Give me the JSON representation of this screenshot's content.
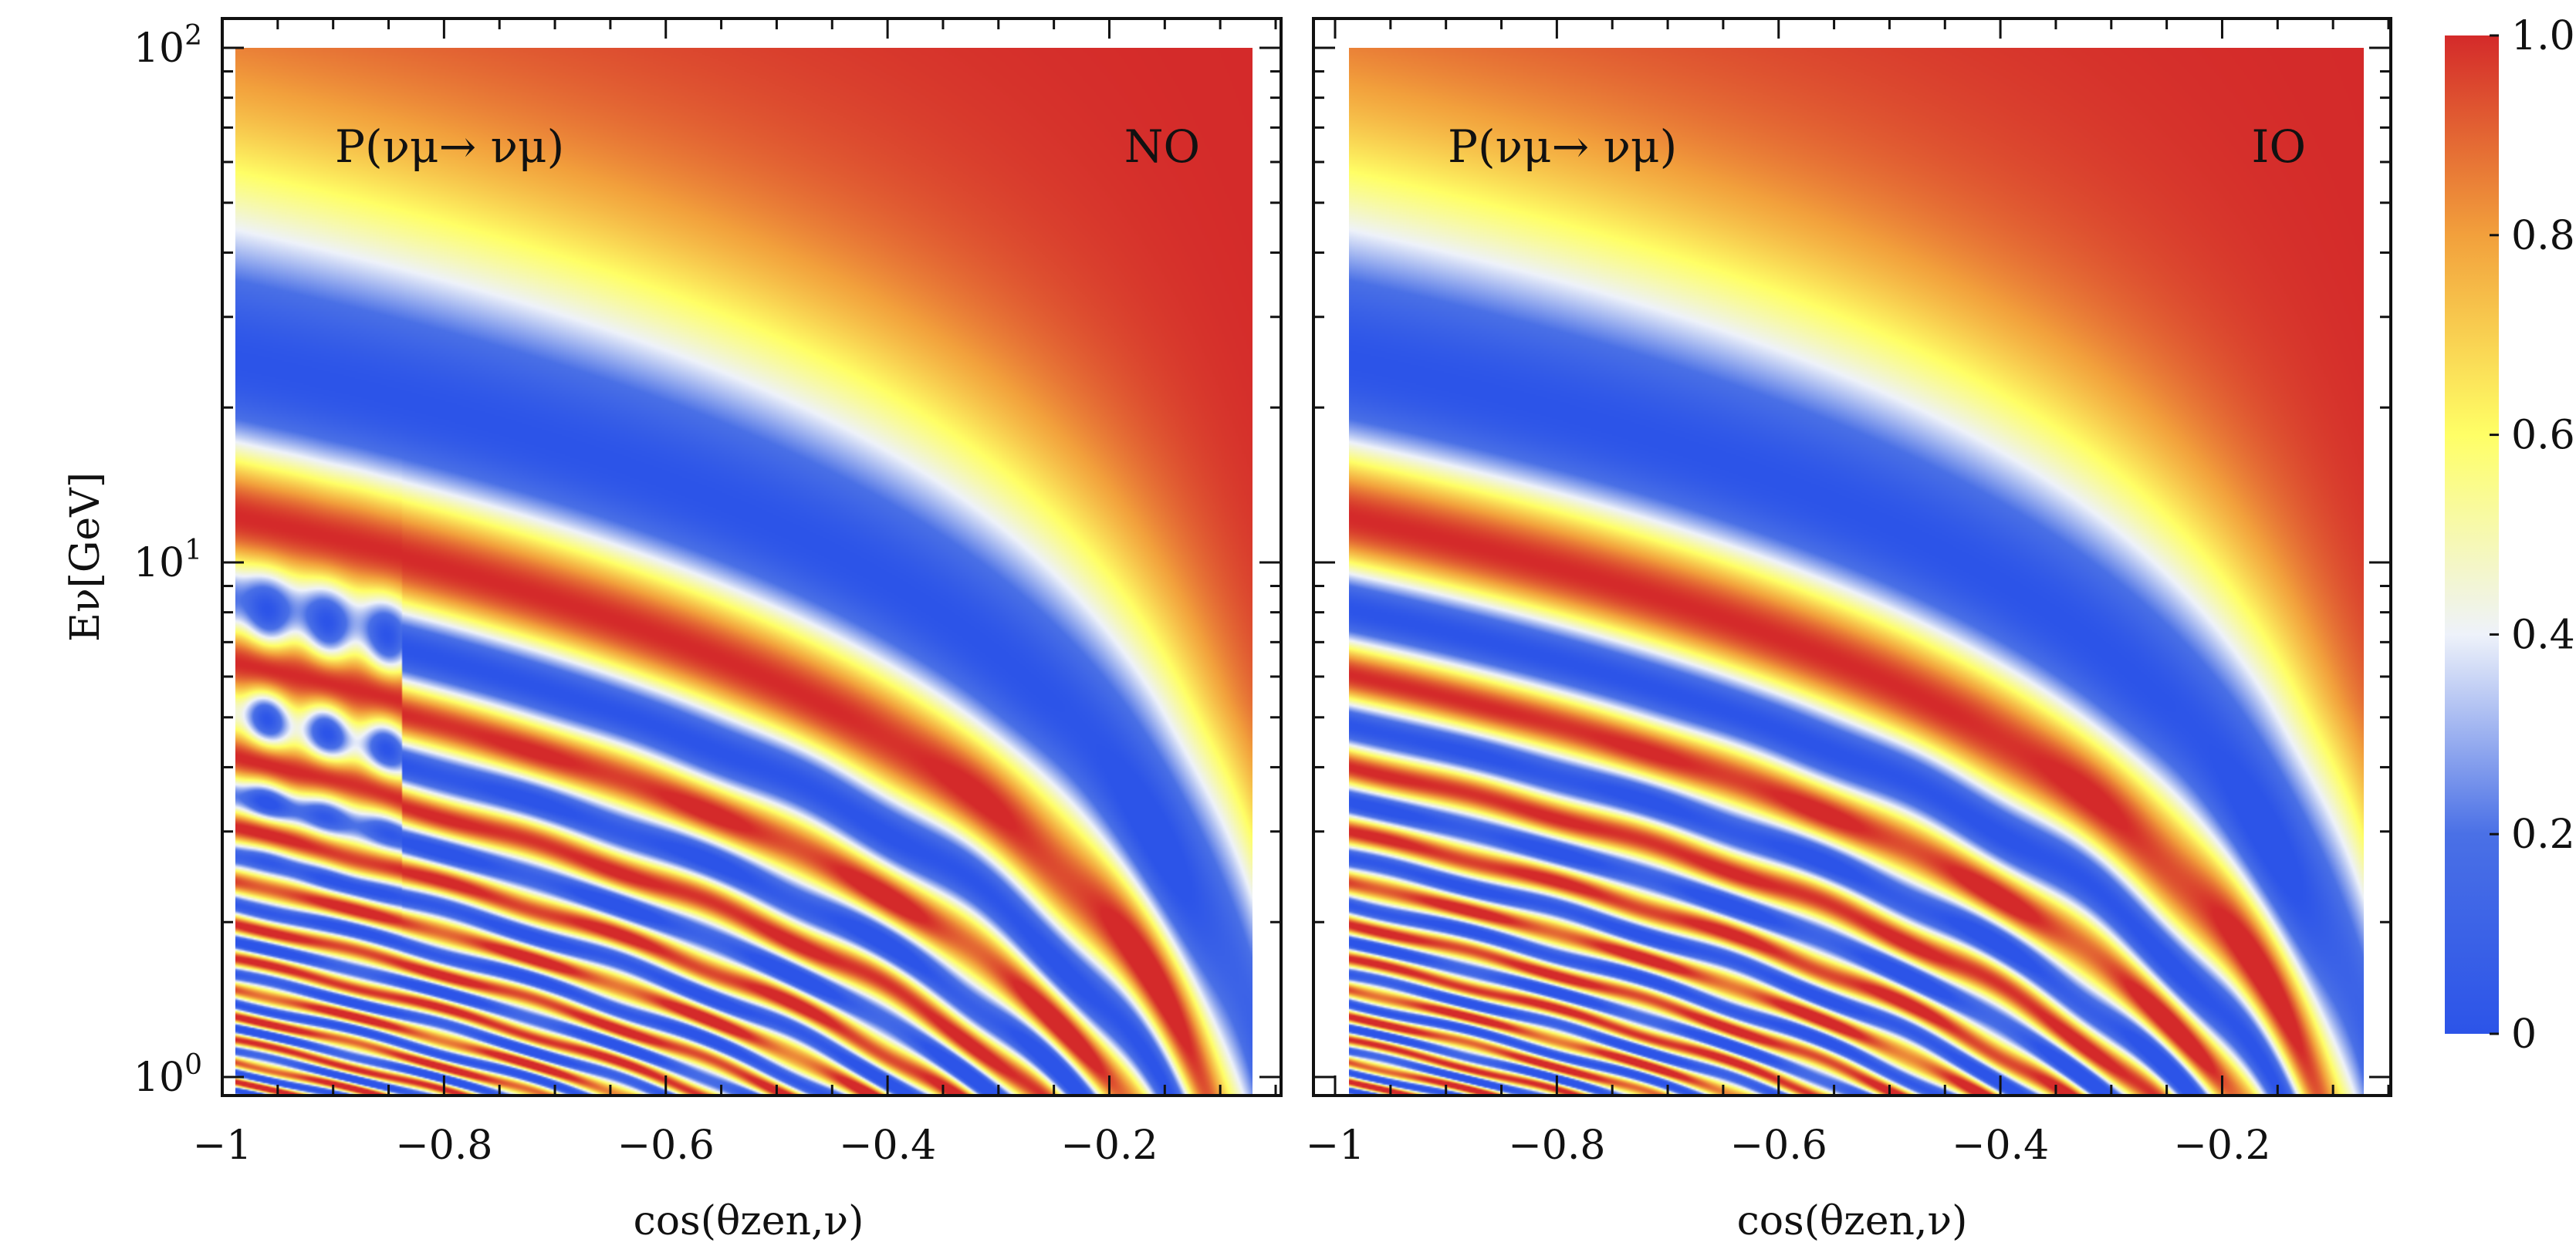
{
  "chart_data": [
    {
      "type": "heatmap",
      "panel": "left",
      "quantity": "P(νμ→ νμ)",
      "ordering_label": "NO",
      "ordering": "normal ordering",
      "xlabel": "cos(θzen,ν)",
      "ylabel": "Eν[GeV]",
      "xlim": [
        -1.0,
        -0.05
      ],
      "ylim": [
        1,
        100
      ],
      "yscale": "log",
      "x_ticks": [
        "−1",
        "−0.8",
        "−0.6",
        "−0.4",
        "−0.2"
      ],
      "y_ticks": [
        {
          "base": "10",
          "exp": "0"
        },
        {
          "base": "10",
          "exp": "1"
        },
        {
          "base": "10",
          "exp": "2"
        }
      ],
      "features": "first oscillation minimum (blue band) near E≈25 GeV at cosθ=−1; strong survival (red) at high E and near-horizontal directions; fast oscillations below 10 GeV"
    },
    {
      "type": "heatmap",
      "panel": "right",
      "quantity": "P(νμ→ νμ)",
      "ordering_label": "IO",
      "ordering": "inverted ordering",
      "xlabel": "cos(θzen,ν)",
      "ylabel": "",
      "xlim": [
        -1.0,
        -0.05
      ],
      "ylim": [
        1,
        100
      ],
      "yscale": "log",
      "x_ticks": [
        "−1",
        "−0.8",
        "−0.6",
        "−0.4",
        "−0.2"
      ],
      "y_ticks": [],
      "features": "same pattern as NO but without the MSW resonance distortion around 3–10 GeV"
    }
  ],
  "colorbar": {
    "min": 0,
    "max": 1.0,
    "ticks": [
      "0",
      "0.2",
      "0.4",
      "0.6",
      "0.8",
      "1.0"
    ],
    "colors": [
      "#2c54e8",
      "#4a70e6",
      "#eef2fa",
      "#ffff66",
      "#f2a03c",
      "#d42a2a"
    ]
  }
}
